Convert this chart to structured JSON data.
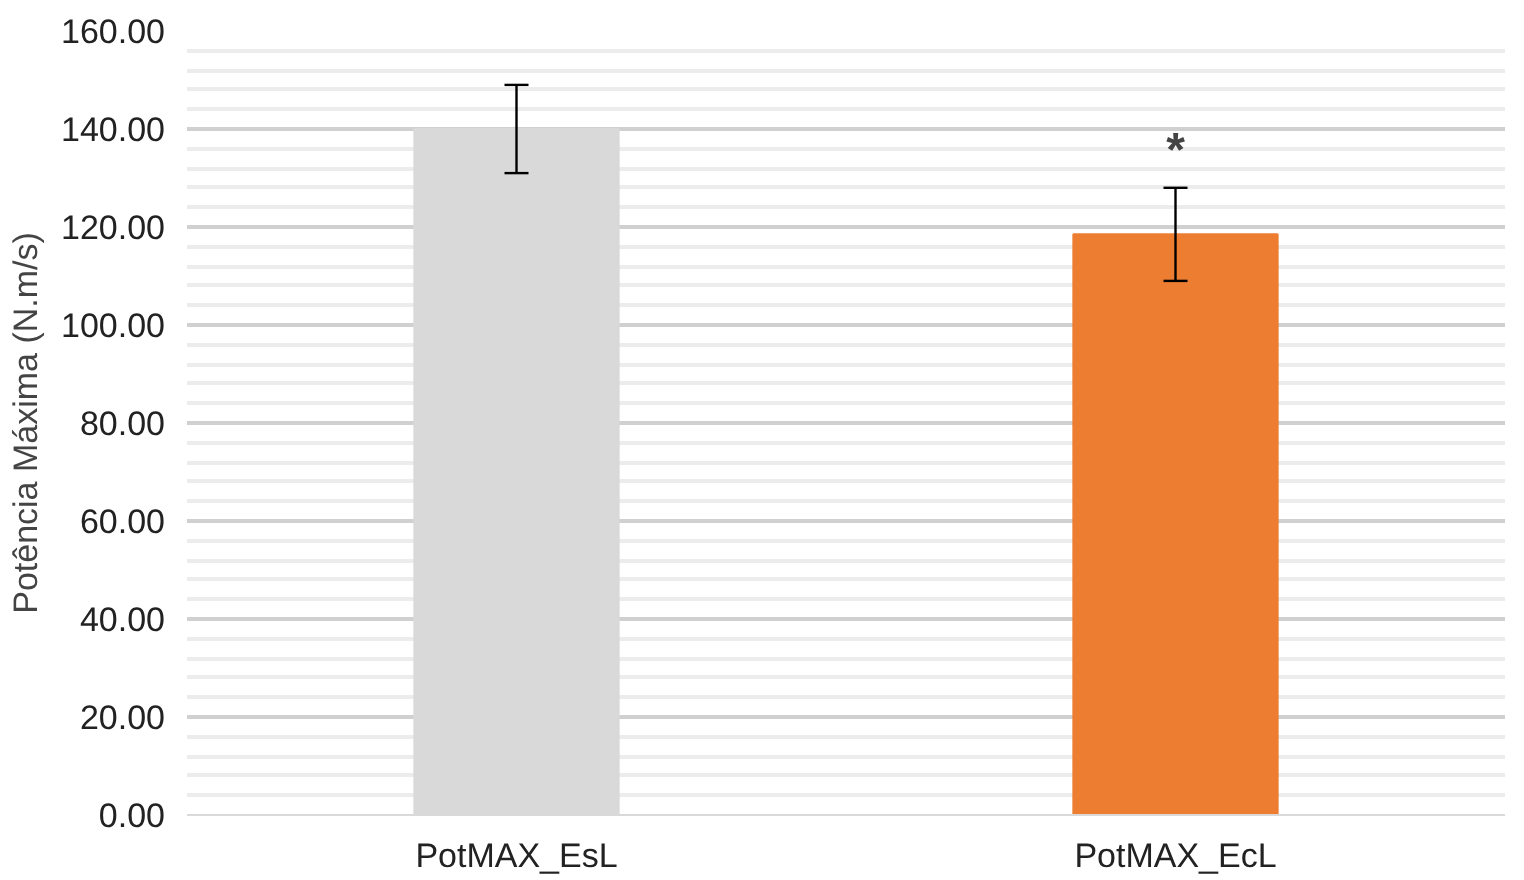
{
  "chart_data": {
    "type": "bar",
    "ylabel": "Potência Máxima (N.m/s)",
    "categories": [
      "PotMAX_EsL",
      "PotMAX_EcL"
    ],
    "values": [
      140,
      118.5
    ],
    "colors": [
      "#d9d9d9",
      "#ed7d31"
    ],
    "errors": [
      9,
      9.5
    ],
    "ylim": [
      0,
      160
    ],
    "yticks": [
      {
        "value": 0,
        "label": "0.00"
      },
      {
        "value": 20,
        "label": "20.00"
      },
      {
        "value": 40,
        "label": "40.00"
      },
      {
        "value": 60,
        "label": "60.00"
      },
      {
        "value": 80,
        "label": "80.00"
      },
      {
        "value": 100,
        "label": "100.00"
      },
      {
        "value": 120,
        "label": "120.00"
      },
      {
        "value": 140,
        "label": "140.00"
      },
      {
        "value": 160,
        "label": "160.00"
      }
    ],
    "annotations": [
      {
        "text": "*",
        "x": "PotMAX_EcL",
        "y": 130
      }
    ],
    "grid": "y"
  }
}
